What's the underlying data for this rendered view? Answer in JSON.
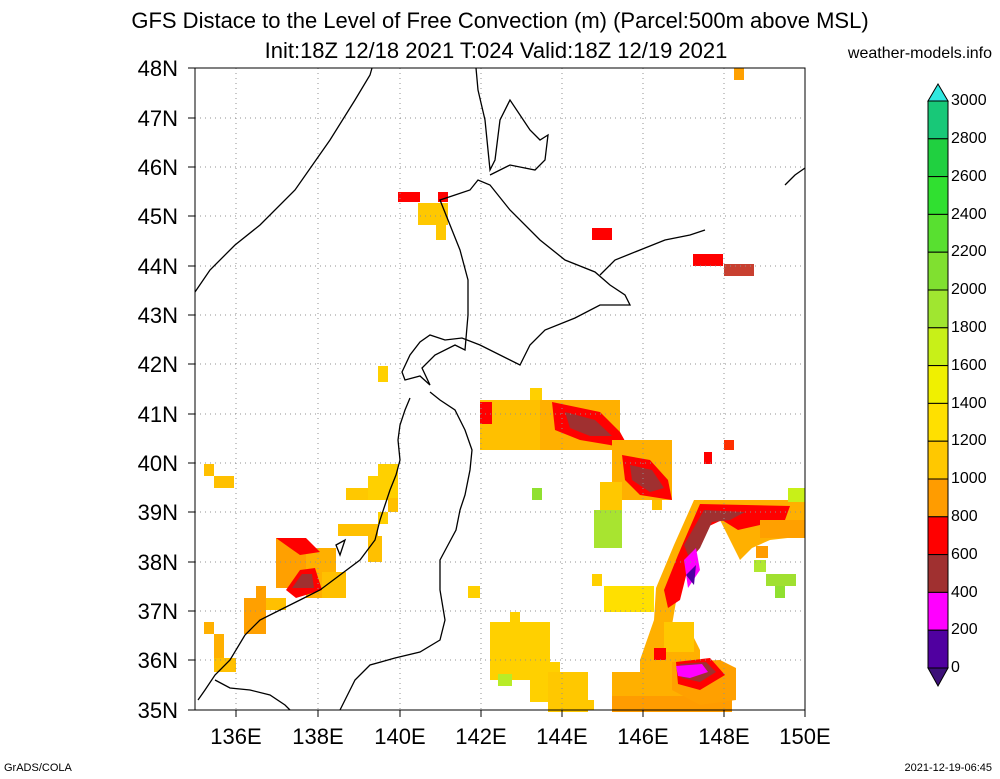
{
  "header": {
    "title_line1": "GFS Distace to the Level of Free Convection (m) (Parcel:500m above MSL)",
    "title_line2": "Init:18Z 12/18 2021 T:024 Valid:18Z 12/19 2021",
    "site": "weather-models.info"
  },
  "map": {
    "lat_labels": [
      "48N",
      "47N",
      "46N",
      "45N",
      "44N",
      "43N",
      "42N",
      "41N",
      "40N",
      "39N",
      "38N",
      "37N",
      "36N",
      "35N"
    ],
    "lon_labels": [
      "136E",
      "138E",
      "140E",
      "142E",
      "144E",
      "146E",
      "148E",
      "150E"
    ],
    "lat_range": [
      35,
      48
    ],
    "lon_range": [
      135,
      150
    ],
    "grid": true,
    "gridline_style": "dotted"
  },
  "colorbar": {
    "labels": [
      "3000",
      "2800",
      "2600",
      "2400",
      "2200",
      "2000",
      "1800",
      "1600",
      "1400",
      "1200",
      "1000",
      "800",
      "600",
      "400",
      "200",
      "0"
    ],
    "colors": [
      "#0ee8d8",
      "#18c878",
      "#20d040",
      "#30e030",
      "#58e030",
      "#80e030",
      "#a0e630",
      "#c8f018",
      "#f0f000",
      "#ffe000",
      "#ffc800",
      "#ff9c00",
      "#ff0000",
      "#a03030",
      "#ff00ff",
      "#5000a0"
    ],
    "top_arrow_color": "#30e8e0",
    "bottom_arrow_color": "#3c1078"
  },
  "footer": {
    "left": "GrADS/COLA",
    "right": "2021-12-19-06:45"
  }
}
